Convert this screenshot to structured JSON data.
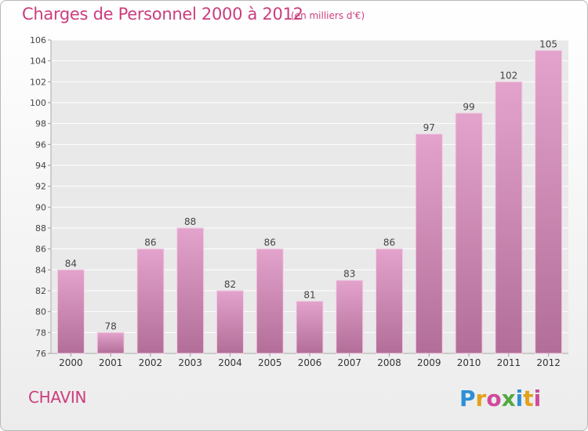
{
  "title": "Charges de Personnel 2000 à 2012",
  "subtitle": "(en milliers d'€)",
  "commune": "CHAVIN",
  "logo": {
    "text": "Proxiti",
    "letters": [
      {
        "ch": "P",
        "color": "#2e8fd6"
      },
      {
        "ch": "r",
        "color": "#e2a11b"
      },
      {
        "ch": "o",
        "color": "#d04a9a"
      },
      {
        "ch": "x",
        "color": "#53a93f"
      },
      {
        "ch": "i",
        "color": "#2e8fd6"
      },
      {
        "ch": "t",
        "color": "#e2a11b"
      },
      {
        "ch": "i",
        "color": "#d04a9a"
      }
    ]
  },
  "colors": {
    "accent": "#cc3d7e",
    "bar_top": "#e3a3cc",
    "bar_bottom": "#b26e98",
    "bar_edge": "#f2cfe3"
  },
  "chart_data": {
    "type": "bar",
    "title": "Charges de Personnel 2000 à 2012",
    "subtitle": "(en milliers d'€)",
    "categories": [
      "2000",
      "2001",
      "2002",
      "2003",
      "2004",
      "2005",
      "2006",
      "2007",
      "2008",
      "2009",
      "2010",
      "2011",
      "2012"
    ],
    "values": [
      84,
      78,
      86,
      88,
      82,
      86,
      81,
      83,
      86,
      97,
      99,
      102,
      105
    ],
    "ylim": [
      76,
      106
    ],
    "yticks": [
      76,
      78,
      80,
      82,
      84,
      86,
      88,
      90,
      92,
      94,
      96,
      98,
      100,
      102,
      104,
      106
    ],
    "grid": true,
    "show_value_labels": true
  }
}
